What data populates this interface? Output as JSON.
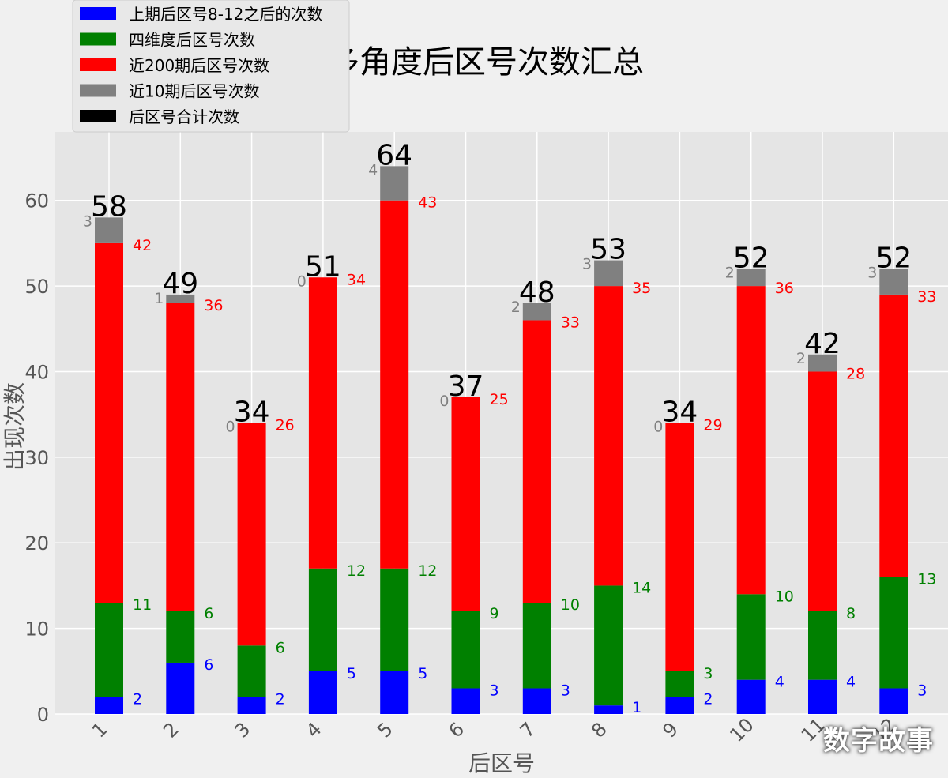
{
  "chart_data": {
    "type": "bar",
    "stacked": true,
    "title": "多角度后区号次数汇总",
    "xlabel": "后区号",
    "ylabel": "出现次数",
    "categories": [
      "1",
      "2",
      "3",
      "4",
      "5",
      "6",
      "7",
      "8",
      "9",
      "10",
      "11",
      "12"
    ],
    "ylim": [
      0,
      68
    ],
    "yticks": [
      0,
      10,
      20,
      30,
      40,
      50,
      60
    ],
    "grid": true,
    "legend_position": "top-left",
    "series": [
      {
        "name": "上期后区号8-12之后的次数",
        "color": "#0000ff",
        "label_color": "#0000ff",
        "values": [
          2,
          6,
          2,
          5,
          5,
          3,
          3,
          1,
          2,
          4,
          4,
          3
        ]
      },
      {
        "name": "四维度后区号次数",
        "color": "#008000",
        "label_color": "#008000",
        "values": [
          11,
          6,
          6,
          12,
          12,
          9,
          10,
          14,
          3,
          10,
          8,
          13
        ]
      },
      {
        "name": "近200期后区号次数",
        "color": "#ff0000",
        "label_color": "#ff0000",
        "values": [
          42,
          36,
          26,
          34,
          43,
          25,
          33,
          35,
          29,
          36,
          28,
          33
        ]
      },
      {
        "name": "近10期后区号次数",
        "color": "#808080",
        "label_color": "#808080",
        "values": [
          3,
          1,
          0,
          0,
          4,
          0,
          2,
          3,
          0,
          2,
          2,
          3
        ]
      }
    ],
    "total_series": {
      "name": "后区号合计次数",
      "color": "#000000",
      "values": [
        58,
        49,
        34,
        51,
        64,
        37,
        48,
        53,
        34,
        52,
        42,
        52
      ]
    }
  },
  "watermark": "数字故事"
}
